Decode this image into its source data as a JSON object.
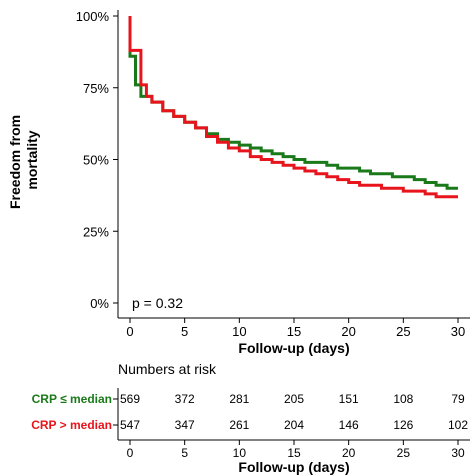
{
  "chart_data": {
    "type": "line",
    "ylabel_lines": [
      "Freedom from",
      "mortality"
    ],
    "xlabel": "Follow-up (days)",
    "xlim": [
      0,
      30
    ],
    "ylim": [
      0,
      100
    ],
    "x_ticks": [
      0,
      5,
      10,
      15,
      20,
      25,
      30
    ],
    "x_tick_labels": [
      "0",
      "5",
      "10",
      "15",
      "20",
      "25",
      "30"
    ],
    "y_ticks": [
      0,
      25,
      50,
      75,
      100
    ],
    "y_tick_labels": [
      "0%",
      "25%",
      "50%",
      "75%",
      "100%"
    ],
    "grid": false,
    "annotation": "p = 0.32",
    "series": [
      {
        "name": "CRP ≤ median",
        "color": "#1a7a1a",
        "step_points": [
          [
            0,
            100
          ],
          [
            0,
            86
          ],
          [
            0.5,
            86
          ],
          [
            0.5,
            76
          ],
          [
            1,
            76
          ],
          [
            1,
            72
          ],
          [
            2,
            72
          ],
          [
            2,
            70
          ],
          [
            3,
            70
          ],
          [
            3,
            67
          ],
          [
            4,
            67
          ],
          [
            4,
            65
          ],
          [
            5,
            65
          ],
          [
            5,
            63
          ],
          [
            6,
            63
          ],
          [
            6,
            61
          ],
          [
            7,
            61
          ],
          [
            7,
            59
          ],
          [
            8,
            59
          ],
          [
            8,
            57
          ],
          [
            9,
            57
          ],
          [
            9,
            56
          ],
          [
            10,
            56
          ],
          [
            10,
            55
          ],
          [
            11,
            55
          ],
          [
            11,
            54
          ],
          [
            12,
            54
          ],
          [
            12,
            53
          ],
          [
            13,
            53
          ],
          [
            13,
            52
          ],
          [
            14,
            52
          ],
          [
            14,
            51
          ],
          [
            15,
            51
          ],
          [
            15,
            50
          ],
          [
            16,
            50
          ],
          [
            16,
            49
          ],
          [
            18,
            49
          ],
          [
            18,
            48
          ],
          [
            19,
            48
          ],
          [
            19,
            47
          ],
          [
            21,
            47
          ],
          [
            21,
            46
          ],
          [
            22,
            46
          ],
          [
            22,
            45
          ],
          [
            24,
            45
          ],
          [
            24,
            44
          ],
          [
            26,
            44
          ],
          [
            26,
            43
          ],
          [
            27,
            43
          ],
          [
            27,
            42
          ],
          [
            28,
            42
          ],
          [
            28,
            41
          ],
          [
            29,
            41
          ],
          [
            29,
            40
          ],
          [
            30,
            40
          ]
        ]
      },
      {
        "name": "CRP > median",
        "color": "#e8141c",
        "step_points": [
          [
            0,
            100
          ],
          [
            0,
            88
          ],
          [
            1,
            88
          ],
          [
            1,
            76
          ],
          [
            1.5,
            76
          ],
          [
            1.5,
            72
          ],
          [
            2,
            72
          ],
          [
            2,
            70
          ],
          [
            3,
            70
          ],
          [
            3,
            67
          ],
          [
            4,
            67
          ],
          [
            4,
            65
          ],
          [
            5,
            65
          ],
          [
            5,
            63
          ],
          [
            6,
            63
          ],
          [
            6,
            61
          ],
          [
            7,
            61
          ],
          [
            7,
            58
          ],
          [
            8,
            58
          ],
          [
            8,
            56
          ],
          [
            9,
            56
          ],
          [
            9,
            54
          ],
          [
            10,
            54
          ],
          [
            10,
            53
          ],
          [
            11,
            53
          ],
          [
            11,
            51
          ],
          [
            12,
            51
          ],
          [
            12,
            50
          ],
          [
            13,
            50
          ],
          [
            13,
            49
          ],
          [
            14,
            49
          ],
          [
            14,
            48
          ],
          [
            15,
            48
          ],
          [
            15,
            47
          ],
          [
            16,
            47
          ],
          [
            16,
            46
          ],
          [
            17,
            46
          ],
          [
            17,
            45
          ],
          [
            18,
            45
          ],
          [
            18,
            44
          ],
          [
            19,
            44
          ],
          [
            19,
            43
          ],
          [
            20,
            43
          ],
          [
            20,
            42
          ],
          [
            21,
            42
          ],
          [
            21,
            41
          ],
          [
            23,
            41
          ],
          [
            23,
            40
          ],
          [
            25,
            40
          ],
          [
            25,
            39
          ],
          [
            27,
            39
          ],
          [
            27,
            38
          ],
          [
            28,
            38
          ],
          [
            28,
            37
          ],
          [
            30,
            37
          ]
        ]
      }
    ],
    "risk_table": {
      "title": "Numbers at risk",
      "x_ticks": [
        0,
        5,
        10,
        15,
        20,
        25,
        30
      ],
      "x_tick_labels": [
        "0",
        "5",
        "10",
        "15",
        "20",
        "25",
        "30"
      ],
      "xlabel": "Follow-up (days)",
      "rows": [
        {
          "label": "CRP ≤ median",
          "color": "#1a7a1a",
          "values": [
            "569",
            "372",
            "281",
            "205",
            "151",
            "108",
            "79"
          ]
        },
        {
          "label": "CRP > median",
          "color": "#e8141c",
          "values": [
            "547",
            "347",
            "261",
            "204",
            "146",
            "126",
            "102"
          ]
        }
      ]
    }
  }
}
